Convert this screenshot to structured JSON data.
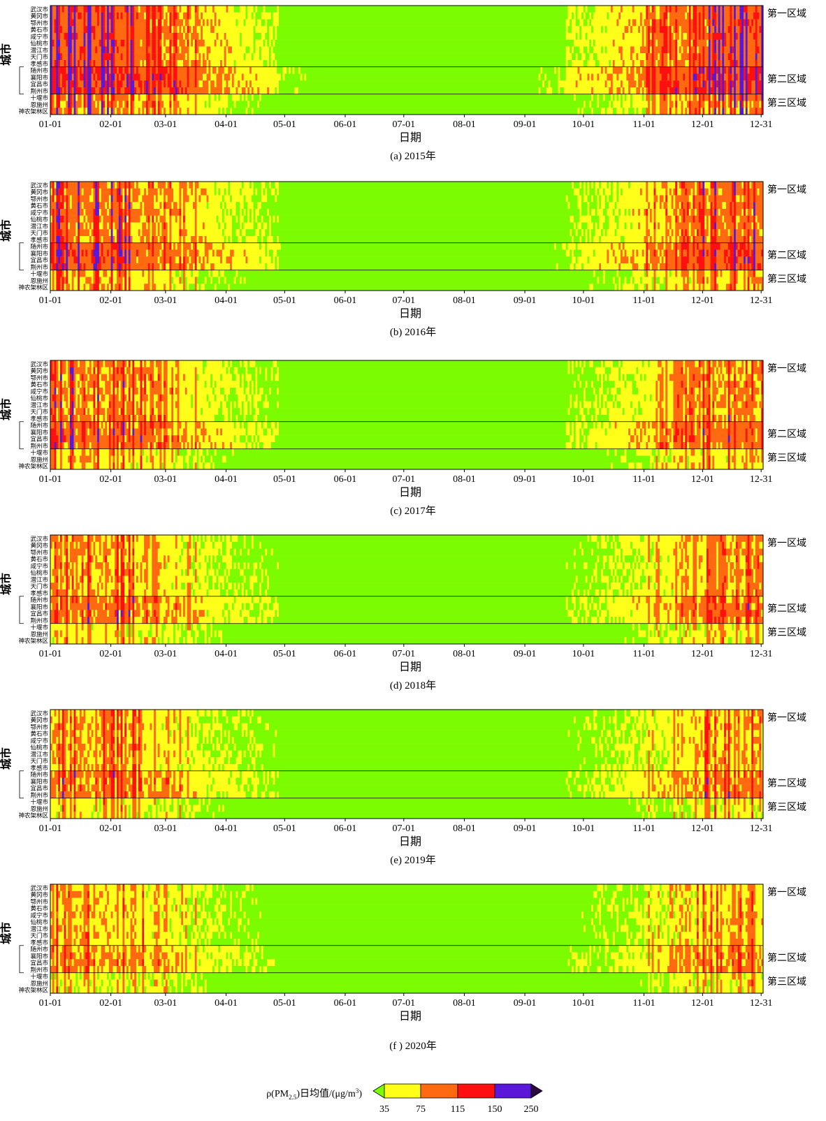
{
  "chart_data": {
    "type": "heatmap",
    "description_units": "ρ(PM2.5) daily mean, μg/m³",
    "cities": [
      "武汉市",
      "黄冈市",
      "鄂州市",
      "黄石市",
      "咸宁市",
      "仙桃市",
      "潜江市",
      "天门市",
      "孝感市",
      "随州市",
      "襄阳市",
      "宜昌市",
      "荆州市",
      "十堰市",
      "恩施州",
      "神农架林区"
    ],
    "ylabel": "城市",
    "xlabel": "日期",
    "x_ticks": [
      "01-01",
      "02-01",
      "03-01",
      "04-01",
      "05-01",
      "06-01",
      "07-01",
      "08-01",
      "09-01",
      "10-01",
      "11-01",
      "12-01",
      "12-31"
    ],
    "regions": [
      {
        "label": "第一区域",
        "rows": [
          0,
          8
        ]
      },
      {
        "label": "第二区域",
        "rows": [
          9,
          12
        ]
      },
      {
        "label": "第三区域",
        "rows": [
          13,
          15
        ]
      }
    ],
    "legend": {
      "title_prefix": "ρ(PM",
      "title_sub": "2.5",
      "title_mid": ")日均值/(μg/m",
      "title_sup": "3",
      "title_suffix": ")",
      "thresholds": [
        "35",
        "75",
        "115",
        "150",
        "250"
      ],
      "colors": [
        "#7CFC00",
        "#FFFF1A",
        "#FF6A10",
        "#FF1010",
        "#5A18D8",
        "#2A0A40"
      ]
    },
    "panels": [
      {
        "caption": "(a)  2015年",
        "intensity": 1.0
      },
      {
        "caption": "(b)  2016年",
        "intensity": 0.82
      },
      {
        "caption": "(c)  2017年",
        "intensity": 0.7
      },
      {
        "caption": "(d)  2018年",
        "intensity": 0.6
      },
      {
        "caption": "(e)  2019年",
        "intensity": 0.58
      },
      {
        "caption": "(f )  2020年",
        "intensity": 0.5
      }
    ]
  }
}
